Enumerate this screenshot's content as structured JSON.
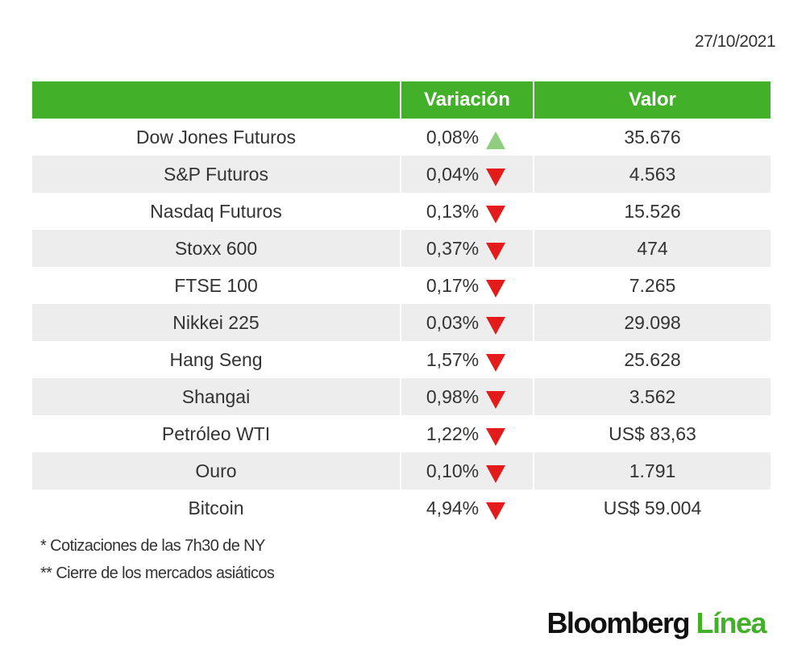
{
  "date": "27/10/2021",
  "colors": {
    "header_bg": "#43b02a",
    "up": "#8fce7e",
    "down": "#e31b1b",
    "stripe": "#ededed"
  },
  "table": {
    "headers": {
      "name": "",
      "variation": "Variación",
      "value": "Valor"
    },
    "rows": [
      {
        "name": "Dow Jones Futuros",
        "variation": "0,08%",
        "direction": "up",
        "value": "35.676"
      },
      {
        "name": "S&P Futuros",
        "variation": "0,04%",
        "direction": "down",
        "value": "4.563"
      },
      {
        "name": "Nasdaq Futuros",
        "variation": "0,13%",
        "direction": "down",
        "value": "15.526"
      },
      {
        "name": "Stoxx 600",
        "variation": "0,37%",
        "direction": "down",
        "value": "474"
      },
      {
        "name": "FTSE 100",
        "variation": "0,17%",
        "direction": "down",
        "value": "7.265"
      },
      {
        "name": "Nikkei 225",
        "variation": "0,03%",
        "direction": "down",
        "value": "29.098"
      },
      {
        "name": "Hang Seng",
        "variation": "1,57%",
        "direction": "down",
        "value": "25.628"
      },
      {
        "name": "Shangai",
        "variation": "0,98%",
        "direction": "down",
        "value": "3.562"
      },
      {
        "name": "Petróleo WTI",
        "variation": "1,22%",
        "direction": "down",
        "value": "US$ 83,63"
      },
      {
        "name": "Ouro",
        "variation": "0,10%",
        "direction": "down",
        "value": "1.791"
      },
      {
        "name": "Bitcoin",
        "variation": "4,94%",
        "direction": "down",
        "value": "US$ 59.004"
      }
    ]
  },
  "notes": [
    "* Cotizaciones de las 7h30 de NY",
    "** Cierre de los mercados asiáticos"
  ],
  "logo": {
    "brand": "Bloomberg",
    "suffix": "Línea"
  }
}
